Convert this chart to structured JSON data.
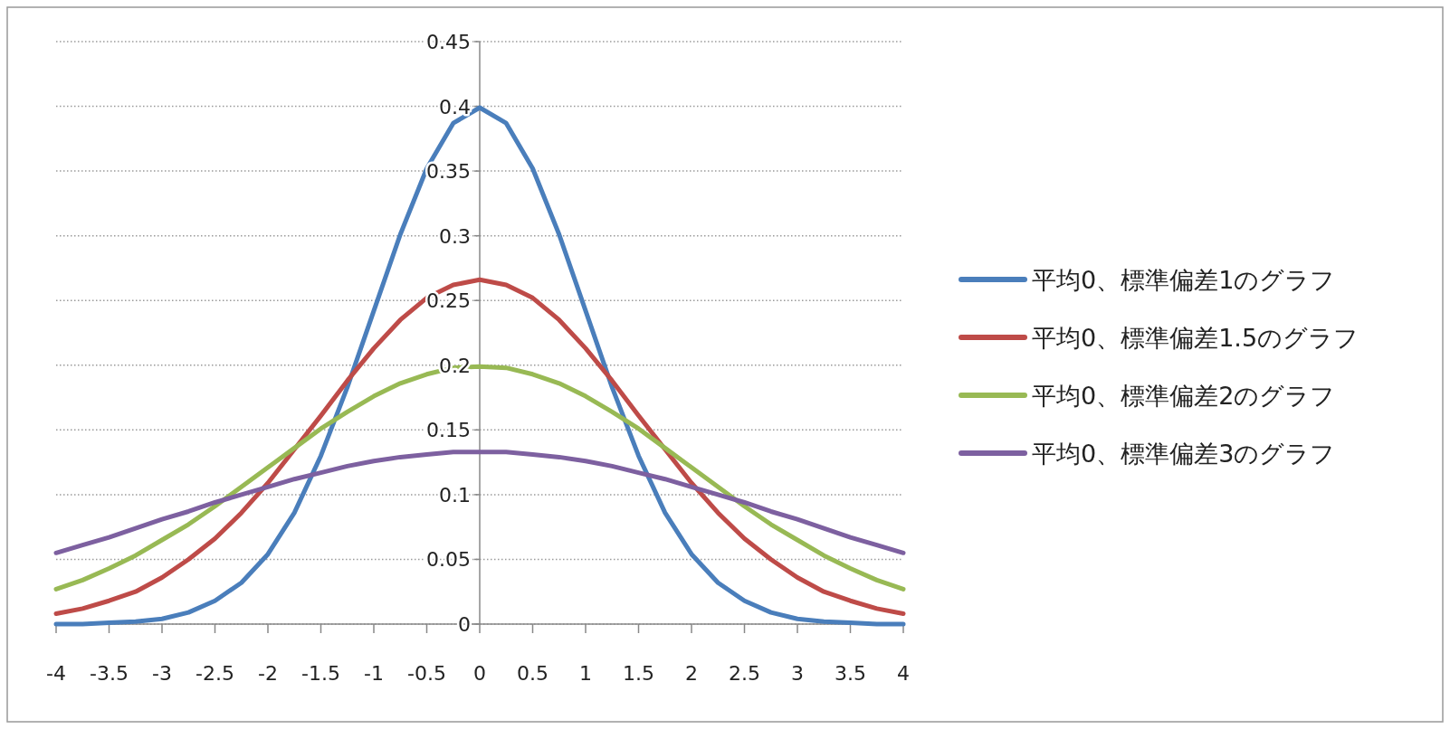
{
  "chart_data": {
    "type": "line",
    "x": [
      -4,
      -3.75,
      -3.5,
      -3.25,
      -3,
      -2.75,
      -2.5,
      -2.25,
      -2,
      -1.75,
      -1.5,
      -1.25,
      -1,
      -0.75,
      -0.5,
      -0.25,
      0,
      0.25,
      0.5,
      0.75,
      1,
      1.25,
      1.5,
      1.75,
      2,
      2.25,
      2.5,
      2.75,
      3,
      3.25,
      3.5,
      3.75,
      4
    ],
    "series": [
      {
        "name": "平均0、標準偏差1のグラフ",
        "color": "#4a7ebb",
        "values": [
          0.0,
          0.0,
          0.001,
          0.002,
          0.004,
          0.009,
          0.018,
          0.032,
          0.054,
          0.086,
          0.13,
          0.183,
          0.242,
          0.301,
          0.352,
          0.387,
          0.399,
          0.387,
          0.352,
          0.301,
          0.242,
          0.183,
          0.13,
          0.086,
          0.054,
          0.032,
          0.018,
          0.009,
          0.004,
          0.002,
          0.001,
          0.0,
          0.0
        ]
      },
      {
        "name": "平均0、標準偏差1.5のグラフ",
        "color": "#be4b48",
        "values": [
          0.008,
          0.012,
          0.018,
          0.025,
          0.036,
          0.05,
          0.066,
          0.086,
          0.109,
          0.135,
          0.161,
          0.188,
          0.213,
          0.235,
          0.252,
          0.262,
          0.266,
          0.262,
          0.252,
          0.235,
          0.213,
          0.188,
          0.161,
          0.135,
          0.109,
          0.086,
          0.066,
          0.05,
          0.036,
          0.025,
          0.018,
          0.012,
          0.008
        ]
      },
      {
        "name": "平均0、標準偏差2のグラフ",
        "color": "#98b954",
        "values": [
          0.027,
          0.034,
          0.043,
          0.053,
          0.065,
          0.077,
          0.091,
          0.106,
          0.121,
          0.136,
          0.151,
          0.164,
          0.176,
          0.186,
          0.193,
          0.198,
          0.199,
          0.198,
          0.193,
          0.186,
          0.176,
          0.164,
          0.151,
          0.136,
          0.121,
          0.106,
          0.091,
          0.077,
          0.065,
          0.053,
          0.043,
          0.034,
          0.027
        ]
      },
      {
        "name": "平均0、標準偏差3のグラフ",
        "color": "#7d60a0",
        "values": [
          0.055,
          0.061,
          0.067,
          0.074,
          0.081,
          0.087,
          0.094,
          0.1,
          0.106,
          0.112,
          0.117,
          0.122,
          0.126,
          0.129,
          0.131,
          0.133,
          0.133,
          0.133,
          0.131,
          0.129,
          0.126,
          0.122,
          0.117,
          0.112,
          0.106,
          0.1,
          0.094,
          0.087,
          0.081,
          0.074,
          0.067,
          0.061,
          0.055
        ]
      }
    ],
    "xlim": [
      -4,
      4
    ],
    "xticks": [
      -4,
      -3.5,
      -3,
      -2.5,
      -2,
      -1.5,
      -1,
      -0.5,
      0,
      0.5,
      1,
      1.5,
      2,
      2.5,
      3,
      3.5,
      4
    ],
    "ylim": [
      0,
      0.45
    ],
    "yticks": [
      0,
      0.05,
      0.1,
      0.15,
      0.2,
      0.25,
      0.3,
      0.35,
      0.4,
      0.45
    ],
    "grid": "y",
    "legend": "right",
    "line_style": "solid",
    "marker": "none"
  }
}
